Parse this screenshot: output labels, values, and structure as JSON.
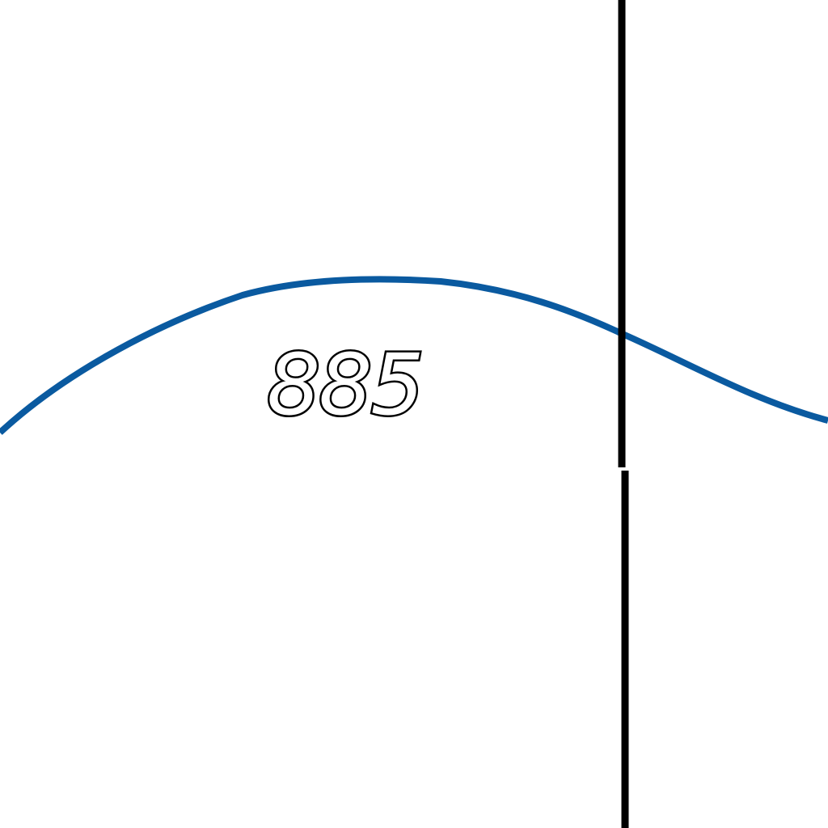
{
  "map": {
    "contour_label": "885",
    "contour_color": "#0a5aa0",
    "boundary_color": "#000000",
    "background_color": "#ffffff"
  }
}
